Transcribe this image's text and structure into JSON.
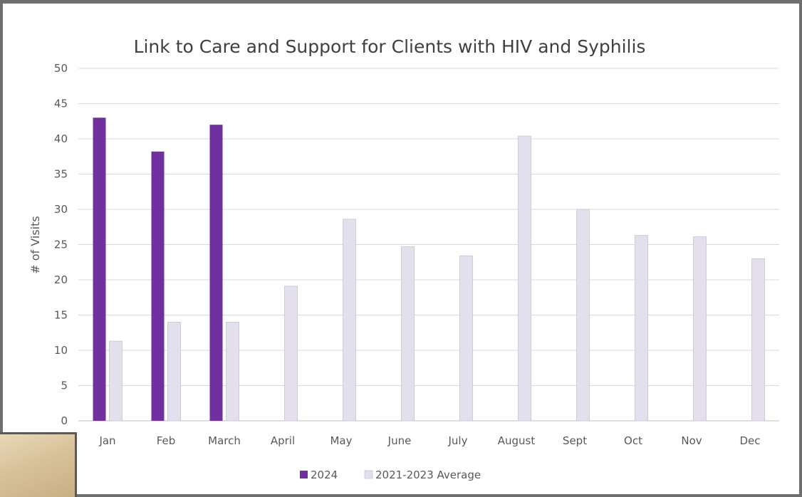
{
  "chart_data": {
    "type": "bar",
    "title": "Link to Care and Support for Clients with HIV and Syphilis",
    "xlabel": "",
    "ylabel": "# of Visits",
    "ylim": [
      0,
      50
    ],
    "yticks": [
      0,
      5,
      10,
      15,
      20,
      25,
      30,
      35,
      40,
      45,
      50
    ],
    "categories": [
      "Jan",
      "Feb",
      "March",
      "April",
      "May",
      "June",
      "July",
      "August",
      "Sept",
      "Oct",
      "Nov",
      "Dec"
    ],
    "series": [
      {
        "name": "2024",
        "color": "#7030a0",
        "values": [
          43,
          38.2,
          42,
          null,
          null,
          null,
          null,
          null,
          null,
          null,
          null,
          null
        ]
      },
      {
        "name": "2021-2023 Average",
        "color": "#e3dfec",
        "values": [
          11.3,
          14,
          14,
          19.1,
          28.6,
          24.7,
          23.4,
          40.4,
          30,
          26.3,
          26.1,
          23
        ]
      }
    ],
    "grid": true,
    "legend_position": "bottom"
  }
}
